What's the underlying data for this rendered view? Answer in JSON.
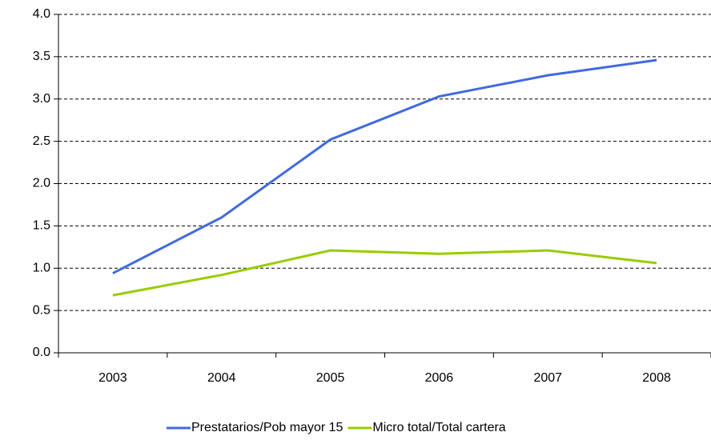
{
  "chart_data": {
    "type": "line",
    "categories": [
      "2003",
      "2004",
      "2005",
      "2006",
      "2007",
      "2008"
    ],
    "series": [
      {
        "name": "Prestatarios/Pob mayor 15",
        "color": "#4169e1",
        "values": [
          0.94,
          1.6,
          2.52,
          3.03,
          3.28,
          3.46
        ]
      },
      {
        "name": "Micro total/Total cartera",
        "color": "#99cc00",
        "values": [
          0.68,
          0.92,
          1.21,
          1.17,
          1.21,
          1.06
        ]
      }
    ],
    "ylim": [
      0,
      4
    ],
    "yticks": [
      {
        "value": 0,
        "label": "0.0"
      },
      0.5,
      {
        "value": 1,
        "label": "1.0"
      },
      1.5,
      {
        "value": 2,
        "label": "2.0"
      },
      2.5,
      {
        "value": 3,
        "label": "3.0"
      },
      3.5,
      {
        "value": 4,
        "label": "4.0"
      }
    ],
    "grid": true,
    "legend": "bottom"
  }
}
